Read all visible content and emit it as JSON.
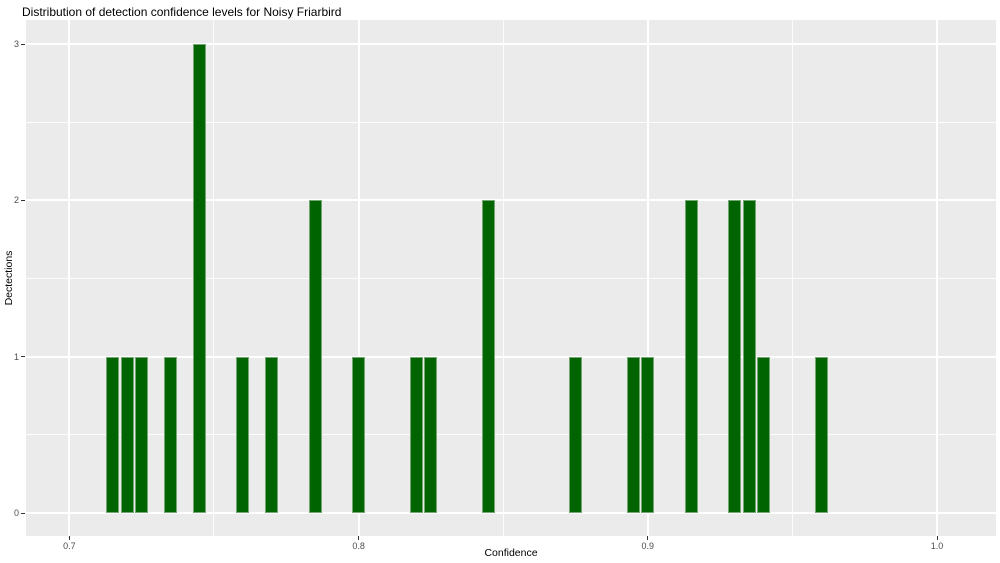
{
  "title": "Distribution of detection confidence levels for Noisy Friarbird",
  "chart_data": {
    "type": "bar",
    "subtype": "histogram",
    "title": "Distribution of detection confidence levels for Noisy Friarbird",
    "xlabel": "Confidence",
    "ylabel": "Dectections",
    "x_tick_labels": [
      "0.7",
      "0.8",
      "0.9",
      "1.0"
    ],
    "x_ticks": [
      0.7,
      0.8,
      0.9,
      1.0
    ],
    "x_minor_ticks": [
      0.75,
      0.85,
      0.95
    ],
    "y_tick_labels": [
      "0",
      "1",
      "2",
      "3"
    ],
    "y_ticks": [
      0,
      1,
      2,
      3
    ],
    "y_minor_ticks": [
      0.5,
      1.5,
      2.5
    ],
    "xlim": [
      0.685,
      1.0204
    ],
    "ylim": [
      -0.147,
      3.154
    ],
    "binwidth": 0.005,
    "bin_centers": [
      0.715,
      0.72,
      0.725,
      0.735,
      0.745,
      0.76,
      0.77,
      0.785,
      0.8,
      0.82,
      0.825,
      0.845,
      0.875,
      0.895,
      0.9,
      0.915,
      0.93,
      0.935,
      0.94,
      0.96
    ],
    "counts": [
      1,
      1,
      1,
      1,
      3,
      1,
      1,
      2,
      1,
      1,
      1,
      2,
      1,
      1,
      1,
      2,
      2,
      2,
      1,
      1
    ],
    "grid": "major-minor",
    "legend": "none",
    "colors": {
      "bar_fill": "#006400",
      "bar_edge": "#75a775",
      "panel_background": "#ebebeb",
      "gridline": "#ffffff",
      "tick_text": "#4d4d4d",
      "title_text": "#000000",
      "tick_mark": "#333333"
    }
  }
}
